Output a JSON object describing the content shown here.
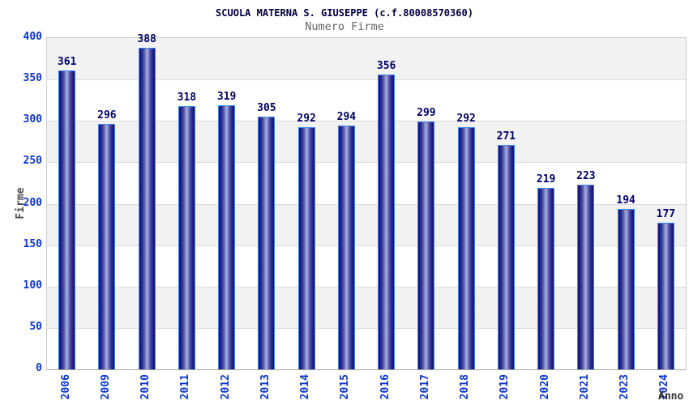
{
  "header": {
    "title": "SCUOLA MATERNA S. GIUSEPPE (c.f.80008570360)",
    "subtitle": "Numero Firme"
  },
  "chart_data": {
    "type": "bar",
    "title": "SCUOLA MATERNA S. GIUSEPPE (c.f.80008570360)",
    "subtitle": "Numero Firme",
    "xlabel": "Anno",
    "ylabel": "Firme",
    "categories": [
      "2006",
      "2009",
      "2010",
      "2011",
      "2012",
      "2013",
      "2014",
      "2015",
      "2016",
      "2017",
      "2018",
      "2019",
      "2020",
      "2021",
      "2023",
      "2024"
    ],
    "values": [
      361,
      296,
      388,
      318,
      319,
      305,
      292,
      294,
      356,
      299,
      292,
      271,
      219,
      223,
      194,
      177
    ],
    "ylim": [
      0,
      400
    ],
    "y_ticks": [
      0,
      50,
      100,
      150,
      200,
      250,
      300,
      350,
      400
    ],
    "grid": "horizontal-every-50",
    "legend": "none",
    "value_labels_shown": true,
    "bar_style": "cylinder-gradient",
    "colors": {
      "title": "#000040",
      "subtitle": "#666666",
      "axis_tick": "#0a35cc",
      "value_label": "#000066",
      "axis_title": "#4d4d4d",
      "xlabel_color": "#333333",
      "bar_edge": "#3f86f0",
      "bar_dark": "#15156b",
      "bar_light": "#adb3e4",
      "band": "#f2f2f2",
      "grid": "#dcdcdc",
      "plot_border": "#cccccc"
    }
  }
}
